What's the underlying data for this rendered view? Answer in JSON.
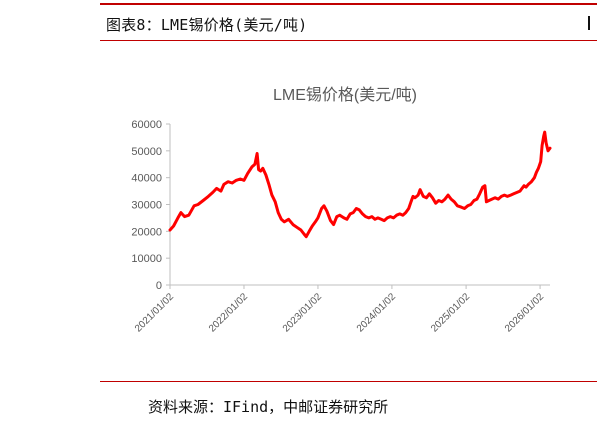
{
  "header": {
    "figure_title": "图表8：LME锡价格(美元/吨)"
  },
  "footer": {
    "source_text": "资料来源：IFind，中邮证券研究所"
  },
  "colors": {
    "accent_rule": "#c00000",
    "series_line": "#ff0000",
    "axis": "#bfbfbf",
    "tick_text": "#595959",
    "title_text": "#595959"
  },
  "chart_data": {
    "type": "line",
    "title": "LME锡价格(美元/吨)",
    "xlabel": "",
    "ylabel": "",
    "xlim": [
      "2021-01-02",
      "2026-02-20"
    ],
    "ylim": [
      0,
      60000
    ],
    "y_ticks": [
      0,
      10000,
      20000,
      30000,
      40000,
      50000,
      60000
    ],
    "x_ticks": [
      "2021/01/02",
      "2022/01/02",
      "2023/01/02",
      "2024/01/02",
      "2025/01/02",
      "2026/01/02"
    ],
    "grid": false,
    "legend": "none",
    "series": [
      {
        "values_xy": [
          [
            "2021-01-02",
            20500
          ],
          [
            "2021-01-20",
            22000
          ],
          [
            "2021-02-10",
            25000
          ],
          [
            "2021-02-25",
            27000
          ],
          [
            "2021-03-15",
            25500
          ],
          [
            "2021-04-05",
            26000
          ],
          [
            "2021-05-01",
            29500
          ],
          [
            "2021-05-20",
            30000
          ],
          [
            "2021-06-15",
            31500
          ],
          [
            "2021-07-10",
            33000
          ],
          [
            "2021-08-01",
            34500
          ],
          [
            "2021-08-20",
            36000
          ],
          [
            "2021-09-10",
            35000
          ],
          [
            "2021-09-25",
            37500
          ],
          [
            "2021-10-15",
            38500
          ],
          [
            "2021-11-05",
            38000
          ],
          [
            "2021-11-25",
            39000
          ],
          [
            "2021-12-15",
            39500
          ],
          [
            "2022-01-02",
            39000
          ],
          [
            "2022-01-20",
            41500
          ],
          [
            "2022-02-10",
            44000
          ],
          [
            "2022-02-25",
            45000
          ],
          [
            "2022-03-08",
            49000
          ],
          [
            "2022-03-15",
            43000
          ],
          [
            "2022-03-25",
            42500
          ],
          [
            "2022-04-05",
            43500
          ],
          [
            "2022-04-20",
            41000
          ],
          [
            "2022-05-05",
            37500
          ],
          [
            "2022-05-20",
            33500
          ],
          [
            "2022-06-05",
            31000
          ],
          [
            "2022-06-20",
            27000
          ],
          [
            "2022-07-05",
            24500
          ],
          [
            "2022-07-20",
            23500
          ],
          [
            "2022-08-10",
            24500
          ],
          [
            "2022-09-01",
            22500
          ],
          [
            "2022-09-20",
            21500
          ],
          [
            "2022-10-10",
            20500
          ],
          [
            "2022-10-25",
            19000
          ],
          [
            "2022-11-05",
            18000
          ],
          [
            "2022-11-20",
            20000
          ],
          [
            "2022-12-05",
            22000
          ],
          [
            "2022-12-20",
            23500
          ],
          [
            "2023-01-02",
            25000
          ],
          [
            "2023-01-20",
            28500
          ],
          [
            "2023-02-01",
            29500
          ],
          [
            "2023-02-15",
            27500
          ],
          [
            "2023-03-05",
            24000
          ],
          [
            "2023-03-20",
            22500
          ],
          [
            "2023-04-05",
            25500
          ],
          [
            "2023-04-20",
            26000
          ],
          [
            "2023-05-10",
            25000
          ],
          [
            "2023-05-25",
            24500
          ],
          [
            "2023-06-10",
            26500
          ],
          [
            "2023-06-25",
            27000
          ],
          [
            "2023-07-10",
            28500
          ],
          [
            "2023-07-25",
            28000
          ],
          [
            "2023-08-10",
            26500
          ],
          [
            "2023-08-25",
            25500
          ],
          [
            "2023-09-10",
            25000
          ],
          [
            "2023-09-25",
            25500
          ],
          [
            "2023-10-10",
            24500
          ],
          [
            "2023-10-25",
            25000
          ],
          [
            "2023-11-10",
            24500
          ],
          [
            "2023-11-25",
            24000
          ],
          [
            "2023-12-10",
            25000
          ],
          [
            "2023-12-25",
            25500
          ],
          [
            "2024-01-10",
            25000
          ],
          [
            "2024-01-25",
            26000
          ],
          [
            "2024-02-10",
            26500
          ],
          [
            "2024-02-25",
            26000
          ],
          [
            "2024-03-10",
            27000
          ],
          [
            "2024-03-25",
            28500
          ],
          [
            "2024-04-05",
            31000
          ],
          [
            "2024-04-15",
            33000
          ],
          [
            "2024-04-25",
            32500
          ],
          [
            "2024-05-10",
            33500
          ],
          [
            "2024-05-20",
            35500
          ],
          [
            "2024-06-05",
            33000
          ],
          [
            "2024-06-20",
            32500
          ],
          [
            "2024-07-05",
            34000
          ],
          [
            "2024-07-20",
            32500
          ],
          [
            "2024-08-05",
            30500
          ],
          [
            "2024-08-20",
            31500
          ],
          [
            "2024-09-05",
            31000
          ],
          [
            "2024-09-20",
            32000
          ],
          [
            "2024-10-05",
            33500
          ],
          [
            "2024-10-20",
            32000
          ],
          [
            "2024-11-05",
            31000
          ],
          [
            "2024-11-20",
            29500
          ],
          [
            "2024-12-10",
            29000
          ],
          [
            "2024-12-25",
            28500
          ],
          [
            "2025-01-10",
            29500
          ],
          [
            "2025-01-25",
            30000
          ],
          [
            "2025-02-10",
            31500
          ],
          [
            "2025-02-25",
            32000
          ],
          [
            "2025-03-10",
            34000
          ],
          [
            "2025-03-25",
            36500
          ],
          [
            "2025-04-05",
            37000
          ],
          [
            "2025-04-12",
            31000
          ],
          [
            "2025-04-25",
            31500
          ],
          [
            "2025-05-10",
            32000
          ],
          [
            "2025-05-25",
            32500
          ],
          [
            "2025-06-10",
            32000
          ],
          [
            "2025-06-25",
            33000
          ],
          [
            "2025-07-10",
            33500
          ],
          [
            "2025-07-25",
            33000
          ],
          [
            "2025-08-10",
            33500
          ],
          [
            "2025-08-25",
            34000
          ],
          [
            "2025-09-10",
            34500
          ],
          [
            "2025-09-25",
            35000
          ],
          [
            "2025-10-05",
            36000
          ],
          [
            "2025-10-15",
            37000
          ],
          [
            "2025-10-25",
            36500
          ],
          [
            "2025-11-05",
            37500
          ],
          [
            "2025-11-20",
            38500
          ],
          [
            "2025-12-05",
            40000
          ],
          [
            "2025-12-15",
            42000
          ],
          [
            "2025-12-25",
            43500
          ],
          [
            "2026-01-05",
            46000
          ],
          [
            "2026-01-12",
            52000
          ],
          [
            "2026-01-20",
            55500
          ],
          [
            "2026-01-25",
            57000
          ],
          [
            "2026-02-01",
            53000
          ],
          [
            "2026-02-10",
            50000
          ],
          [
            "2026-02-20",
            51000
          ]
        ]
      }
    ]
  }
}
